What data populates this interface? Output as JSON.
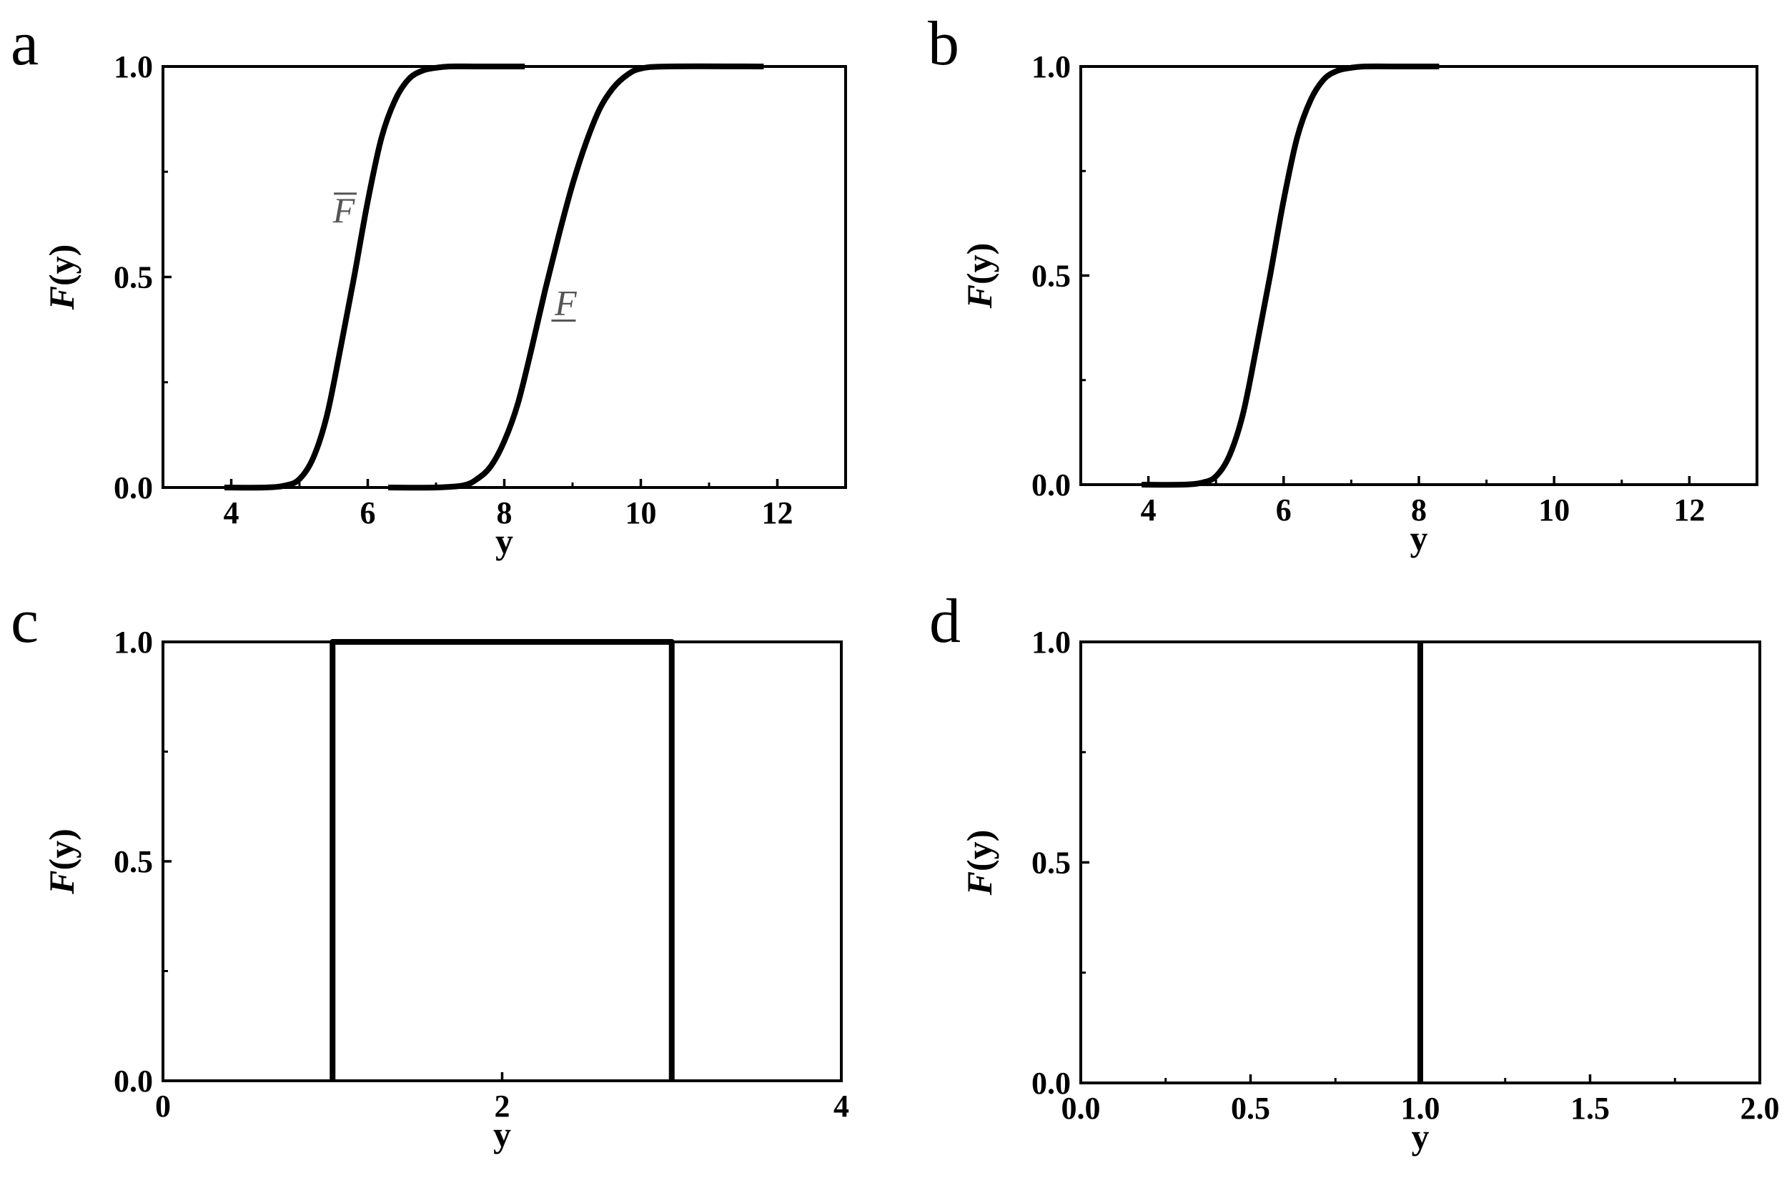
{
  "chart_data": [
    {
      "type": "line",
      "panel_label": "a",
      "xlabel": "y",
      "ylabel_main": "F",
      "ylabel_rest": "(y)",
      "xlim": [
        3,
        13
      ],
      "ylim": [
        0,
        1
      ],
      "xticks": [
        4,
        6,
        8,
        10,
        12
      ],
      "xtick_labels": [
        "4",
        "6",
        "8",
        "10",
        "12"
      ],
      "yticks": [
        0,
        0.5,
        1
      ],
      "ytick_labels": [
        "0.0",
        "0.5",
        "1.0"
      ],
      "series": [
        {
          "label": "F",
          "label_mark": "overline",
          "label_at": [
            5.65,
            0.63
          ],
          "x": [
            3.9,
            4.5,
            4.8,
            5.0,
            5.2,
            5.4,
            5.6,
            5.8,
            6.0,
            6.2,
            6.4,
            6.6,
            6.8,
            7.0,
            7.2,
            7.6,
            8.3
          ],
          "y": [
            0.0,
            0.0,
            0.005,
            0.02,
            0.07,
            0.17,
            0.33,
            0.5,
            0.68,
            0.83,
            0.92,
            0.97,
            0.99,
            0.997,
            1.0,
            1.0,
            1.0
          ]
        },
        {
          "label": "F",
          "label_mark": "underline",
          "label_at": [
            8.9,
            0.41
          ],
          "x": [
            6.3,
            7.0,
            7.4,
            7.6,
            7.8,
            8.0,
            8.2,
            8.4,
            8.6,
            8.8,
            9.0,
            9.2,
            9.4,
            9.6,
            9.8,
            10.0,
            10.4,
            11.8
          ],
          "y": [
            0.0,
            0.0,
            0.005,
            0.02,
            0.05,
            0.11,
            0.2,
            0.33,
            0.47,
            0.6,
            0.72,
            0.82,
            0.9,
            0.95,
            0.98,
            0.995,
            1.0,
            1.0
          ]
        }
      ]
    },
    {
      "type": "line",
      "panel_label": "b",
      "xlabel": "y",
      "ylabel_main": "F",
      "ylabel_rest": "(y)",
      "xlim": [
        3,
        13
      ],
      "ylim": [
        0,
        1
      ],
      "xticks": [
        4,
        6,
        8,
        10,
        12
      ],
      "xtick_labels": [
        "4",
        "6",
        "8",
        "10",
        "12"
      ],
      "yticks": [
        0,
        0.5,
        1
      ],
      "ytick_labels": [
        "0.0",
        "0.5",
        "1.0"
      ],
      "series": [
        {
          "x": [
            3.9,
            4.5,
            4.8,
            5.0,
            5.2,
            5.4,
            5.6,
            5.8,
            6.0,
            6.2,
            6.4,
            6.6,
            6.8,
            7.0,
            7.2,
            7.6,
            8.3
          ],
          "y": [
            0.0,
            0.0,
            0.005,
            0.02,
            0.07,
            0.17,
            0.33,
            0.5,
            0.68,
            0.83,
            0.92,
            0.97,
            0.99,
            0.997,
            1.0,
            1.0,
            1.0
          ]
        }
      ]
    },
    {
      "type": "line",
      "panel_label": "c",
      "xlabel": "y",
      "ylabel_main": "F",
      "ylabel_rest": "(y)",
      "xlim": [
        0,
        4
      ],
      "ylim": [
        0,
        1
      ],
      "xticks": [
        0,
        2,
        4
      ],
      "xtick_labels": [
        "0",
        "2",
        "4"
      ],
      "yticks": [
        0,
        0.5,
        1
      ],
      "ytick_labels": [
        "0.0",
        "0.5",
        "1.0"
      ],
      "series": [
        {
          "x": [
            1,
            1,
            3,
            3
          ],
          "y": [
            0,
            1,
            1,
            0
          ]
        }
      ]
    },
    {
      "type": "line",
      "panel_label": "d",
      "xlabel": "y",
      "ylabel_main": "F",
      "ylabel_rest": "(y)",
      "xlim": [
        0,
        2
      ],
      "ylim": [
        0,
        1
      ],
      "xticks": [
        0,
        0.5,
        1,
        1.5,
        2
      ],
      "xtick_labels": [
        "0.0",
        "0.5",
        "1.0",
        "1.5",
        "2.0"
      ],
      "yticks": [
        0,
        0.5,
        1
      ],
      "ytick_labels": [
        "0.0",
        "0.5",
        "1.0"
      ],
      "series": [
        {
          "x": [
            1,
            1
          ],
          "y": [
            0,
            1
          ]
        }
      ]
    }
  ]
}
